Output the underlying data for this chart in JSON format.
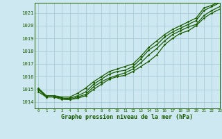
{
  "title": "Graphe pression niveau de la mer (hPa)",
  "bg_color": "#cde8f0",
  "grid_color": "#aaccd8",
  "line_color": "#1a5c00",
  "xlim": [
    -0.5,
    23
  ],
  "ylim": [
    1013.5,
    1021.8
  ],
  "yticks": [
    1014,
    1015,
    1016,
    1017,
    1018,
    1019,
    1020,
    1021
  ],
  "xticks": [
    0,
    1,
    2,
    3,
    4,
    5,
    6,
    7,
    8,
    9,
    10,
    11,
    12,
    13,
    14,
    15,
    16,
    17,
    18,
    19,
    20,
    21,
    22,
    23
  ],
  "series": [
    [
      1014.8,
      1014.4,
      1014.4,
      1014.2,
      1014.2,
      1014.3,
      1014.5,
      1015.0,
      1015.4,
      1015.8,
      1016.0,
      1016.1,
      1016.4,
      1016.8,
      1017.2,
      1017.7,
      1018.5,
      1019.0,
      1019.4,
      1019.6,
      1020.0,
      1020.6,
      1021.0,
      1021.3
    ],
    [
      1015.0,
      1014.4,
      1014.4,
      1014.3,
      1014.2,
      1014.4,
      1014.6,
      1015.2,
      1015.6,
      1015.9,
      1016.1,
      1016.3,
      1016.6,
      1017.1,
      1017.7,
      1018.2,
      1018.8,
      1019.3,
      1019.6,
      1019.9,
      1020.1,
      1020.8,
      1021.2,
      1021.5
    ],
    [
      1015.0,
      1014.5,
      1014.5,
      1014.3,
      1014.3,
      1014.5,
      1014.8,
      1015.4,
      1015.8,
      1016.2,
      1016.4,
      1016.5,
      1016.8,
      1017.4,
      1018.1,
      1018.5,
      1019.1,
      1019.5,
      1019.8,
      1020.1,
      1020.4,
      1021.2,
      1021.5,
      1021.8
    ],
    [
      1015.1,
      1014.5,
      1014.5,
      1014.4,
      1014.4,
      1014.7,
      1015.1,
      1015.6,
      1016.0,
      1016.4,
      1016.6,
      1016.8,
      1017.0,
      1017.6,
      1018.3,
      1018.8,
      1019.3,
      1019.7,
      1020.0,
      1020.3,
      1020.6,
      1021.4,
      1021.6,
      1021.9
    ]
  ]
}
